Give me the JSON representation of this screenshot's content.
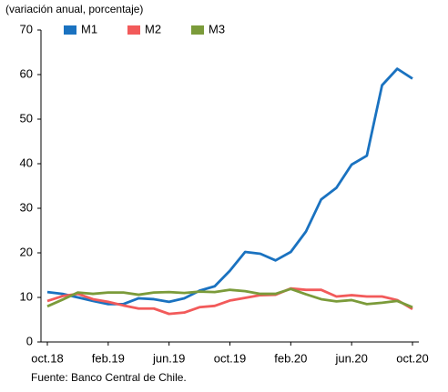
{
  "chart_data": {
    "type": "line",
    "subtitle": "(variación anual, porcentaje)",
    "source": "Fuente: Banco Central de Chile.",
    "categories": [
      "oct.18",
      null,
      null,
      null,
      "feb.19",
      null,
      null,
      null,
      "jun.19",
      null,
      null,
      null,
      "oct.19",
      null,
      null,
      null,
      "feb.20",
      null,
      null,
      null,
      "jun.20",
      null,
      null,
      null,
      "oct.20"
    ],
    "series": [
      {
        "name": "M1",
        "color": "#1a72c0",
        "values": [
          11.2,
          10.8,
          10,
          9.2,
          8.5,
          8.5,
          9.8,
          9.6,
          9,
          9.8,
          11.5,
          12.5,
          16,
          20.2,
          19.8,
          18.3,
          20.2,
          24.8,
          32,
          34.6,
          39.8,
          41.8,
          57.6,
          61.3,
          59.1
        ]
      },
      {
        "name": "M2",
        "color": "#f25a5a",
        "values": [
          9.2,
          10.3,
          10.8,
          9.6,
          9,
          8.2,
          7.5,
          7.5,
          6.3,
          6.6,
          7.8,
          8.1,
          9.3,
          9.9,
          10.5,
          10.6,
          12,
          11.7,
          11.7,
          10.2,
          10.5,
          10.2,
          10.2,
          9.4,
          7.4
        ]
      },
      {
        "name": "M3",
        "color": "#7b9b3a",
        "values": [
          8,
          9.5,
          11.1,
          10.8,
          11.1,
          11.1,
          10.6,
          11.1,
          11.2,
          11,
          11.3,
          11.2,
          11.7,
          11.4,
          10.8,
          10.8,
          11.9,
          10.7,
          9.6,
          9.1,
          9.4,
          8.5,
          8.8,
          9.2,
          7.8
        ]
      }
    ],
    "ylim": [
      0,
      70
    ],
    "yticks": [
      0,
      10,
      20,
      30,
      40,
      50,
      60,
      70
    ]
  }
}
